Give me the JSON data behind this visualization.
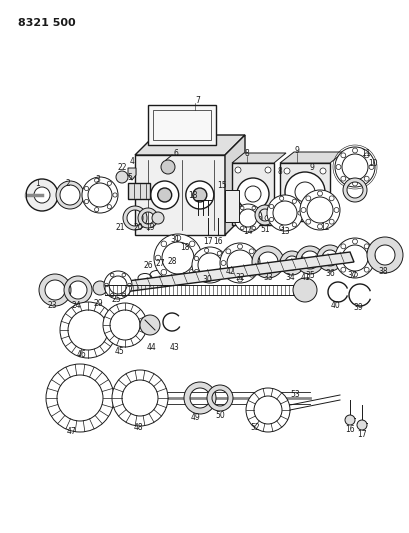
{
  "title": "8321 500",
  "bg_color": "#ffffff",
  "fg_color": "#1a1a1a",
  "fig_width": 4.1,
  "fig_height": 5.33,
  "dpi": 100
}
